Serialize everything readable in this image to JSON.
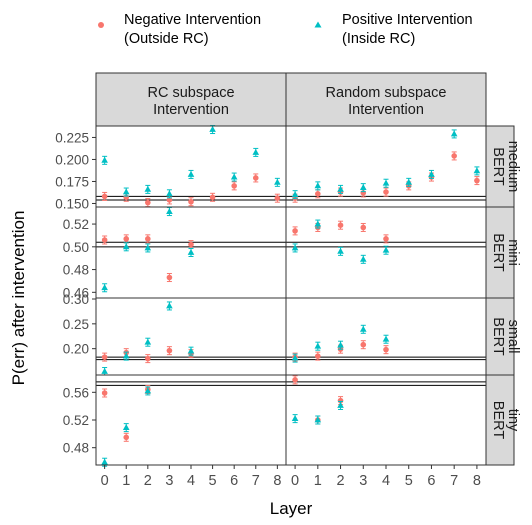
{
  "chart_data": {
    "type": "scatter",
    "xlabel": "Layer",
    "ylabel": "P(err) after intervention",
    "x_ticks": [
      0,
      1,
      2,
      3,
      4,
      5,
      6,
      7,
      8
    ],
    "legend": {
      "placement": "top",
      "items": [
        {
          "key": "neg",
          "line1": "Negative Intervention",
          "line2": "(Outside RC)",
          "color": "#F8766D",
          "shape": "circle"
        },
        {
          "key": "pos",
          "line1": "Positive Intervention",
          "line2": "(Inside RC)",
          "color": "#00BFC4",
          "shape": "triangle"
        }
      ]
    },
    "columns": [
      {
        "line1": "RC subspace",
        "line2": "Intervention"
      },
      {
        "line1": "Random subspace",
        "line2": "Intervention"
      }
    ],
    "rows": [
      {
        "label_line1": "BERT",
        "label_line2": "medium",
        "ylim": [
          0.146,
          0.238
        ],
        "yticks": [
          0.15,
          0.175,
          0.2,
          0.225
        ],
        "ytick_labels": [
          "0.150",
          "0.175",
          "0.200",
          "0.225"
        ],
        "baselines": [
          0.154,
          0.158
        ],
        "panels": [
          {
            "neg": [
              [
                0,
                0.158
              ],
              [
                1,
                0.157
              ],
              [
                2,
                0.151
              ],
              [
                3,
                0.154
              ],
              [
                4,
                0.152
              ],
              [
                5,
                0.157
              ],
              [
                6,
                0.17
              ],
              [
                7,
                0.179
              ],
              [
                8,
                0.156
              ]
            ],
            "pos": [
              [
                0,
                0.199
              ],
              [
                1,
                0.163
              ],
              [
                2,
                0.166
              ],
              [
                3,
                0.161
              ],
              [
                4,
                0.183
              ],
              [
                5,
                0.234
              ],
              [
                6,
                0.18
              ],
              [
                7,
                0.208
              ],
              [
                8,
                0.174
              ]
            ]
          },
          {
            "neg": [
              [
                0,
                0.156
              ],
              [
                1,
                0.161
              ],
              [
                2,
                0.163
              ],
              [
                3,
                0.162
              ],
              [
                4,
                0.163
              ],
              [
                5,
                0.17
              ],
              [
                6,
                0.18
              ],
              [
                7,
                0.204
              ],
              [
                8,
                0.176
              ]
            ],
            "pos": [
              [
                0,
                0.16
              ],
              [
                1,
                0.17
              ],
              [
                2,
                0.166
              ],
              [
                3,
                0.168
              ],
              [
                4,
                0.173
              ],
              [
                5,
                0.174
              ],
              [
                6,
                0.183
              ],
              [
                7,
                0.229
              ],
              [
                8,
                0.187
              ]
            ]
          }
        ]
      },
      {
        "label_line1": "BERT",
        "label_line2": "mini",
        "ylim": [
          0.455,
          0.535
        ],
        "yticks": [
          0.46,
          0.48,
          0.5,
          0.52
        ],
        "ytick_labels": [
          "0.46",
          "0.48",
          "0.50",
          "0.52"
        ],
        "baselines": [
          0.5,
          0.504
        ],
        "panels": [
          {
            "neg": [
              [
                0,
                0.506
              ],
              [
                1,
                0.507
              ],
              [
                2,
                0.507
              ],
              [
                3,
                0.473
              ],
              [
                4,
                0.502
              ]
            ],
            "pos": [
              [
                0,
                0.464
              ],
              [
                1,
                0.5
              ],
              [
                2,
                0.499
              ],
              [
                3,
                0.531
              ],
              [
                4,
                0.495
              ]
            ]
          },
          {
            "neg": [
              [
                0,
                0.514
              ],
              [
                1,
                0.517
              ],
              [
                2,
                0.519
              ],
              [
                3,
                0.517
              ],
              [
                4,
                0.507
              ]
            ],
            "pos": [
              [
                0,
                0.499
              ],
              [
                1,
                0.52
              ],
              [
                2,
                0.496
              ],
              [
                3,
                0.489
              ],
              [
                4,
                0.497
              ]
            ]
          }
        ]
      },
      {
        "label_line1": "BERT",
        "label_line2": "small",
        "ylim": [
          0.147,
          0.302
        ],
        "yticks": [
          0.2,
          0.25,
          0.3
        ],
        "ytick_labels": [
          "0.20",
          "0.25",
          "0.30"
        ],
        "baselines": [
          0.178,
          0.183
        ],
        "panels": [
          {
            "neg": [
              [
                0,
                0.183
              ],
              [
                1,
                0.192
              ],
              [
                2,
                0.18
              ],
              [
                3,
                0.196
              ],
              [
                4,
                0.19
              ]
            ],
            "pos": [
              [
                0,
                0.154
              ],
              [
                1,
                0.185
              ],
              [
                2,
                0.213
              ],
              [
                3,
                0.286
              ],
              [
                4,
                0.195
              ]
            ]
          },
          {
            "neg": [
              [
                0,
                0.183
              ],
              [
                1,
                0.185
              ],
              [
                2,
                0.199
              ],
              [
                3,
                0.208
              ],
              [
                4,
                0.198
              ]
            ],
            "pos": [
              [
                0,
                0.181
              ],
              [
                1,
                0.205
              ],
              [
                2,
                0.207
              ],
              [
                3,
                0.239
              ],
              [
                4,
                0.219
              ]
            ]
          }
        ]
      },
      {
        "label_line1": "BERT",
        "label_line2": "tiny",
        "ylim": [
          0.455,
          0.585
        ],
        "yticks": [
          0.48,
          0.52,
          0.56
        ],
        "ytick_labels": [
          "0.48",
          "0.52",
          "0.56"
        ],
        "baselines": [
          0.57,
          0.575
        ],
        "panels": [
          {
            "neg": [
              [
                0,
                0.559
              ],
              [
                1,
                0.495
              ],
              [
                2,
                0.564
              ]
            ],
            "pos": [
              [
                0,
                0.459
              ],
              [
                1,
                0.509
              ],
              [
                2,
                0.562
              ]
            ]
          },
          {
            "neg": [
              [
                0,
                0.578
              ],
              [
                1,
                0.52
              ],
              [
                2,
                0.548
              ]
            ],
            "pos": [
              [
                0,
                0.522
              ],
              [
                1,
                0.52
              ],
              [
                2,
                0.541
              ]
            ]
          }
        ]
      }
    ]
  }
}
